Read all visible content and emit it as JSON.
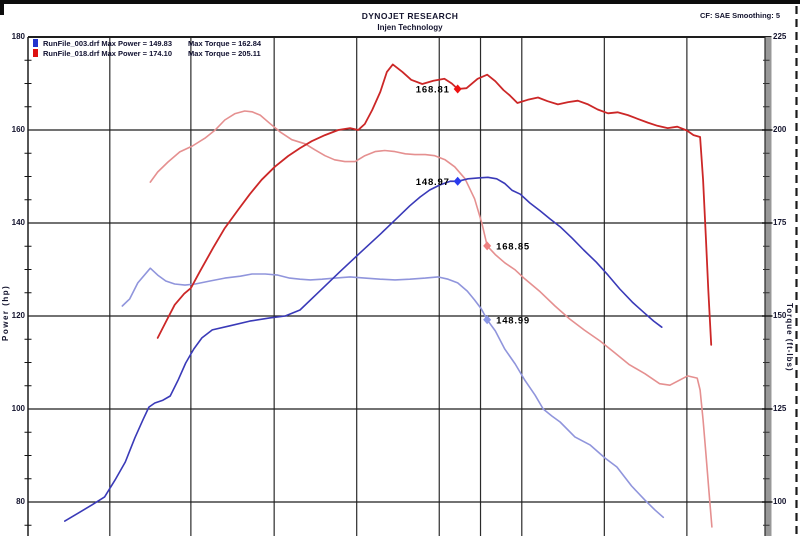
{
  "header": {
    "title": "DYNOJET RESEARCH",
    "subtitle": "Injen Technology",
    "correction_info": "CF: SAE  Smoothing: 5"
  },
  "legend": {
    "runs": [
      {
        "color": "#2233cc",
        "file_power_text": "RunFile_003.drf Max Power = 149.83",
        "torque_text": "Max Torque = 162.84"
      },
      {
        "color": "#dd1111",
        "file_power_text": "RunFile_018.drf Max Power = 174.10",
        "torque_text": "Max Torque = 205.11"
      }
    ]
  },
  "chart_data": {
    "type": "line",
    "title": "Dynojet dyno comparison - power and torque vs engine speed",
    "x_axis": {
      "label": "",
      "note": "x tick labels cropped out of visible area",
      "cropped": true
    },
    "y_axis_left": {
      "label": "Power (hp)",
      "ticks": [
        180,
        160,
        140,
        120,
        100,
        80
      ],
      "top_value": 180,
      "units_per_major": 20
    },
    "y_axis_right": {
      "label": "Torque (ft-lbs)",
      "ticks": [
        225,
        200,
        175,
        150,
        125,
        100
      ],
      "top_value": 225,
      "units_per_major": 25
    },
    "x_gridlines_pct": [
      11.1,
      22.1,
      33.4,
      44.6,
      55.8,
      61.4,
      67.0,
      78.2,
      89.4
    ],
    "grid": true,
    "series": [
      {
        "name": "RunFile_018 Torque",
        "axis": "torque",
        "color": "#e59090",
        "width": 1.6,
        "points": [
          [
            16.6,
            186.0
          ],
          [
            17.6,
            188.7
          ],
          [
            19.0,
            191.4
          ],
          [
            20.6,
            194.1
          ],
          [
            22.3,
            195.7
          ],
          [
            24.0,
            197.8
          ],
          [
            25.4,
            200.0
          ],
          [
            26.7,
            202.7
          ],
          [
            28.1,
            204.4
          ],
          [
            29.4,
            205.1
          ],
          [
            30.4,
            204.9
          ],
          [
            31.5,
            204.0
          ],
          [
            32.8,
            201.8
          ],
          [
            34.2,
            199.5
          ],
          [
            35.8,
            197.4
          ],
          [
            37.6,
            196.3
          ],
          [
            38.9,
            194.7
          ],
          [
            40.3,
            193.1
          ],
          [
            41.6,
            192.0
          ],
          [
            43.0,
            191.5
          ],
          [
            44.4,
            191.5
          ],
          [
            45.7,
            193.1
          ],
          [
            47.1,
            194.2
          ],
          [
            48.4,
            194.5
          ],
          [
            49.8,
            194.2
          ],
          [
            51.2,
            193.6
          ],
          [
            52.5,
            193.4
          ],
          [
            53.9,
            193.4
          ],
          [
            55.2,
            193.1
          ],
          [
            56.6,
            192.0
          ],
          [
            57.9,
            190.1
          ],
          [
            59.3,
            186.9
          ],
          [
            60.6,
            181.5
          ],
          [
            61.6,
            174.8
          ],
          [
            62.3,
            168.85
          ],
          [
            63.4,
            166.5
          ],
          [
            64.7,
            164.3
          ],
          [
            66.1,
            162.4
          ],
          [
            67.4,
            160.0
          ],
          [
            69.5,
            156.5
          ],
          [
            71.5,
            152.7
          ],
          [
            73.5,
            149.2
          ],
          [
            75.5,
            146.2
          ],
          [
            77.6,
            143.3
          ],
          [
            79.6,
            140.1
          ],
          [
            81.6,
            136.9
          ],
          [
            83.7,
            134.5
          ],
          [
            85.7,
            131.8
          ],
          [
            87.1,
            131.4
          ],
          [
            89.5,
            133.9
          ],
          [
            90.8,
            133.3
          ],
          [
            91.2,
            130.1
          ],
          [
            91.6,
            122.0
          ],
          [
            92.0,
            112.7
          ],
          [
            92.4,
            102.7
          ],
          [
            92.8,
            93.3
          ]
        ]
      },
      {
        "name": "RunFile_003 Torque",
        "axis": "torque",
        "color": "#9095dc",
        "width": 1.6,
        "points": [
          [
            12.8,
            152.7
          ],
          [
            13.8,
            154.6
          ],
          [
            14.9,
            158.9
          ],
          [
            16.6,
            162.84
          ],
          [
            17.6,
            161.0
          ],
          [
            18.7,
            159.4
          ],
          [
            19.9,
            158.6
          ],
          [
            21.3,
            158.3
          ],
          [
            22.7,
            158.6
          ],
          [
            24.7,
            159.4
          ],
          [
            26.7,
            160.2
          ],
          [
            28.8,
            160.7
          ],
          [
            30.4,
            161.3
          ],
          [
            32.2,
            161.3
          ],
          [
            33.9,
            161.0
          ],
          [
            35.5,
            160.2
          ],
          [
            36.9,
            159.9
          ],
          [
            38.3,
            159.7
          ],
          [
            39.9,
            159.9
          ],
          [
            41.7,
            160.2
          ],
          [
            43.7,
            160.5
          ],
          [
            45.7,
            160.2
          ],
          [
            47.8,
            159.9
          ],
          [
            49.8,
            159.7
          ],
          [
            51.8,
            159.9
          ],
          [
            53.9,
            160.2
          ],
          [
            55.6,
            160.5
          ],
          [
            57.0,
            159.9
          ],
          [
            58.3,
            158.9
          ],
          [
            59.6,
            156.7
          ],
          [
            60.6,
            154.3
          ],
          [
            61.5,
            151.9
          ],
          [
            62.3,
            148.99
          ],
          [
            63.4,
            146.0
          ],
          [
            64.7,
            141.1
          ],
          [
            66.1,
            137.1
          ],
          [
            67.4,
            132.8
          ],
          [
            68.8,
            128.7
          ],
          [
            69.9,
            125.0
          ],
          [
            71.1,
            123.1
          ],
          [
            72.2,
            121.5
          ],
          [
            74.2,
            117.5
          ],
          [
            76.3,
            115.3
          ],
          [
            78.3,
            111.8
          ],
          [
            79.9,
            109.4
          ],
          [
            81.9,
            104.3
          ],
          [
            83.7,
            100.5
          ],
          [
            85.1,
            97.8
          ],
          [
            86.2,
            95.9
          ]
        ]
      },
      {
        "name": "RunFile_003 Power",
        "axis": "power",
        "color": "#3a3ab8",
        "width": 1.6,
        "points": [
          [
            5.0,
            75.9
          ],
          [
            6.8,
            77.6
          ],
          [
            8.7,
            79.4
          ],
          [
            10.4,
            81.1
          ],
          [
            11.8,
            84.7
          ],
          [
            13.2,
            88.6
          ],
          [
            14.5,
            93.8
          ],
          [
            15.6,
            97.7
          ],
          [
            16.4,
            100.4
          ],
          [
            17.2,
            101.3
          ],
          [
            18.3,
            101.9
          ],
          [
            19.3,
            102.8
          ],
          [
            20.4,
            106.3
          ],
          [
            21.4,
            109.9
          ],
          [
            22.5,
            112.9
          ],
          [
            23.6,
            115.3
          ],
          [
            25.0,
            117.0
          ],
          [
            27.4,
            117.9
          ],
          [
            30.1,
            118.9
          ],
          [
            32.8,
            119.6
          ],
          [
            34.9,
            120.0
          ],
          [
            36.9,
            121.3
          ],
          [
            39.6,
            125.4
          ],
          [
            42.3,
            129.5
          ],
          [
            45.0,
            133.5
          ],
          [
            47.8,
            137.6
          ],
          [
            50.5,
            141.7
          ],
          [
            51.8,
            143.7
          ],
          [
            53.2,
            145.6
          ],
          [
            54.5,
            147.1
          ],
          [
            55.9,
            148.2
          ],
          [
            57.3,
            149.0
          ],
          [
            58.3,
            148.97
          ],
          [
            59.7,
            149.5
          ],
          [
            61.1,
            149.7
          ],
          [
            62.4,
            149.83
          ],
          [
            63.6,
            149.5
          ],
          [
            64.7,
            148.5
          ],
          [
            65.7,
            147.0
          ],
          [
            66.8,
            146.2
          ],
          [
            68.1,
            144.3
          ],
          [
            69.5,
            142.6
          ],
          [
            70.8,
            140.9
          ],
          [
            72.2,
            139.2
          ],
          [
            73.8,
            136.8
          ],
          [
            75.4,
            134.2
          ],
          [
            77.1,
            131.6
          ],
          [
            78.7,
            128.8
          ],
          [
            80.3,
            125.8
          ],
          [
            82.0,
            123.0
          ],
          [
            83.6,
            120.7
          ],
          [
            84.9,
            118.9
          ],
          [
            86.0,
            117.6
          ]
        ]
      },
      {
        "name": "RunFile_018 Power",
        "axis": "power",
        "color": "#cc2727",
        "width": 1.8,
        "points": [
          [
            17.6,
            115.3
          ],
          [
            18.7,
            118.7
          ],
          [
            19.9,
            122.4
          ],
          [
            21.2,
            124.8
          ],
          [
            22.1,
            126.0
          ],
          [
            23.3,
            129.5
          ],
          [
            25.1,
            134.6
          ],
          [
            26.7,
            138.9
          ],
          [
            28.5,
            142.8
          ],
          [
            30.1,
            146.2
          ],
          [
            31.7,
            149.3
          ],
          [
            33.5,
            152.1
          ],
          [
            35.3,
            154.4
          ],
          [
            36.9,
            156.1
          ],
          [
            38.5,
            157.6
          ],
          [
            40.3,
            158.9
          ],
          [
            42.1,
            160.0
          ],
          [
            43.7,
            160.4
          ],
          [
            44.8,
            160.0
          ],
          [
            45.7,
            161.3
          ],
          [
            46.7,
            164.3
          ],
          [
            47.8,
            168.2
          ],
          [
            48.7,
            172.5
          ],
          [
            49.5,
            174.1
          ],
          [
            50.8,
            172.5
          ],
          [
            52.0,
            170.8
          ],
          [
            53.5,
            169.9
          ],
          [
            55.0,
            170.6
          ],
          [
            56.5,
            171.0
          ],
          [
            57.5,
            170.0
          ],
          [
            58.3,
            168.81
          ],
          [
            59.5,
            169.0
          ],
          [
            61.0,
            171.0
          ],
          [
            62.3,
            171.9
          ],
          [
            63.4,
            170.5
          ],
          [
            64.5,
            168.6
          ],
          [
            65.4,
            167.4
          ],
          [
            66.4,
            165.8
          ],
          [
            67.8,
            166.5
          ],
          [
            69.2,
            167.0
          ],
          [
            70.5,
            166.2
          ],
          [
            71.9,
            165.5
          ],
          [
            73.3,
            166.0
          ],
          [
            74.6,
            166.3
          ],
          [
            76.0,
            165.5
          ],
          [
            77.3,
            164.4
          ],
          [
            78.7,
            163.6
          ],
          [
            80.0,
            163.8
          ],
          [
            81.4,
            163.2
          ],
          [
            82.7,
            162.4
          ],
          [
            84.1,
            161.6
          ],
          [
            85.4,
            160.9
          ],
          [
            86.8,
            160.4
          ],
          [
            88.1,
            160.7
          ],
          [
            89.4,
            159.9
          ],
          [
            90.3,
            158.9
          ],
          [
            91.2,
            158.5
          ],
          [
            91.6,
            149.2
          ],
          [
            92.0,
            136.3
          ],
          [
            92.3,
            125.6
          ],
          [
            92.7,
            113.8
          ]
        ]
      }
    ],
    "markers": [
      {
        "label": "168.81",
        "x_pct": 58.3,
        "value": 168.81,
        "axis": "power",
        "color": "#ee1111",
        "label_side": "left"
      },
      {
        "label": "148.97",
        "x_pct": 58.3,
        "value": 148.97,
        "axis": "power",
        "color": "#2a3bee",
        "label_side": "left"
      },
      {
        "label": "168.85",
        "x_pct": 62.3,
        "value": 168.85,
        "axis": "torque",
        "color": "#ee8080",
        "label_side": "right"
      },
      {
        "label": "148.99",
        "x_pct": 62.3,
        "value": 148.99,
        "axis": "torque",
        "color": "#8b97e6",
        "label_side": "right"
      }
    ]
  }
}
